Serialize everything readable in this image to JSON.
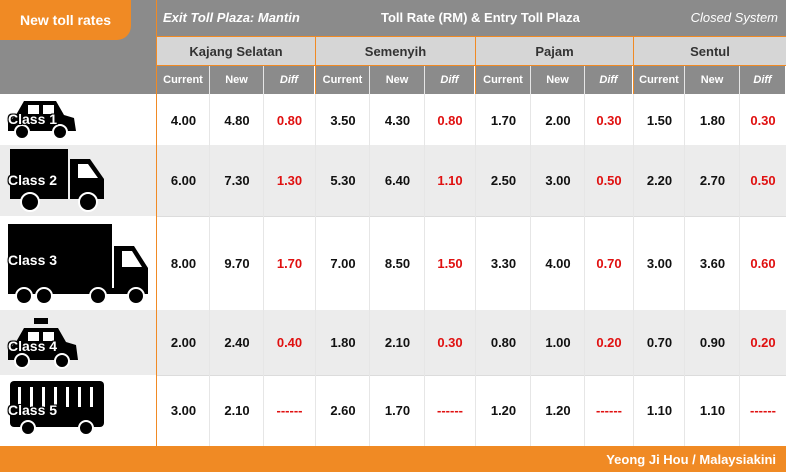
{
  "title": "New toll rates",
  "header": {
    "exit_label": "Exit Toll Plaza: Mantin",
    "rate_label": "Toll Rate (RM) & Entry Toll Plaza",
    "system_label": "Closed System"
  },
  "plazas": [
    "Kajang Selatan",
    "Semenyih",
    "Pajam",
    "Sentul"
  ],
  "columns": {
    "current": "Current",
    "new": "New",
    "diff": "Diff"
  },
  "rows": [
    {
      "class": "Class 1",
      "icon": "car-icon",
      "values": [
        [
          "4.00",
          "4.80",
          "0.80"
        ],
        [
          "3.50",
          "4.30",
          "0.80"
        ],
        [
          "1.70",
          "2.00",
          "0.30"
        ],
        [
          "1.50",
          "1.80",
          "0.30"
        ]
      ]
    },
    {
      "class": "Class 2",
      "icon": "truck-icon",
      "values": [
        [
          "6.00",
          "7.30",
          "1.30"
        ],
        [
          "5.30",
          "6.40",
          "1.10"
        ],
        [
          "2.50",
          "3.00",
          "0.50"
        ],
        [
          "2.20",
          "2.70",
          "0.50"
        ]
      ]
    },
    {
      "class": "Class 3",
      "icon": "lorry-icon",
      "values": [
        [
          "8.00",
          "9.70",
          "1.70"
        ],
        [
          "7.00",
          "8.50",
          "1.50"
        ],
        [
          "3.30",
          "4.00",
          "0.70"
        ],
        [
          "3.00",
          "3.60",
          "0.60"
        ]
      ]
    },
    {
      "class": "Class 4",
      "icon": "taxi-icon",
      "values": [
        [
          "2.00",
          "2.40",
          "0.40"
        ],
        [
          "1.80",
          "2.10",
          "0.30"
        ],
        [
          "0.80",
          "1.00",
          "0.20"
        ],
        [
          "0.70",
          "0.90",
          "0.20"
        ]
      ]
    },
    {
      "class": "Class 5",
      "icon": "bus-icon",
      "values": [
        [
          "3.00",
          "2.10",
          "------"
        ],
        [
          "2.60",
          "1.70",
          "------"
        ],
        [
          "1.20",
          "1.20",
          "------"
        ],
        [
          "1.10",
          "1.10",
          "------"
        ]
      ]
    }
  ],
  "credit": "Yeong Ji Hou / Malaysiakini",
  "colors": {
    "accent": "#f08a24",
    "header_gray": "#8b8b8b",
    "diff_red": "#e01010"
  }
}
